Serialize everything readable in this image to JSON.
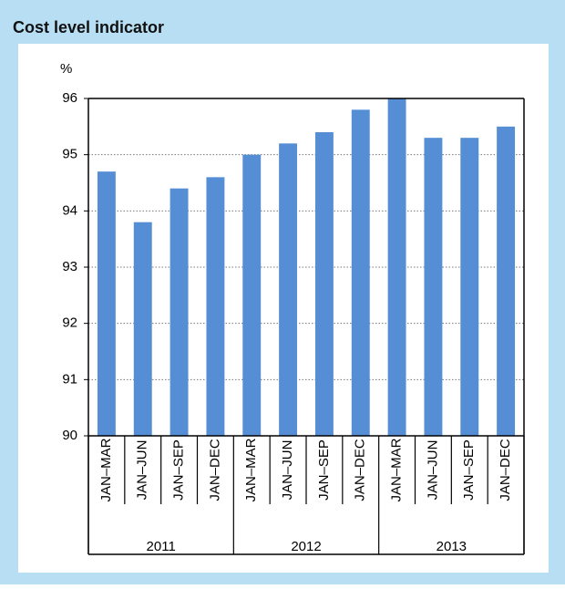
{
  "chart_data": {
    "type": "bar",
    "title": "Cost level indicator",
    "y_label": "%",
    "categories": [
      "JAN–MAR",
      "JAN–JUN",
      "JAN–SEP",
      "JAN–DEC",
      "JAN–MAR",
      "JAN–JUN",
      "JAN–SEP",
      "JAN–DEC",
      "JAN–MAR",
      "JAN–JUN",
      "JAN–SEP",
      "JAN–DEC"
    ],
    "groups": [
      "2011",
      "2012",
      "2013"
    ],
    "values": [
      94.7,
      93.8,
      94.4,
      94.6,
      95.0,
      95.2,
      95.4,
      95.8,
      96.0,
      95.3,
      95.3,
      95.5
    ],
    "color": "#558ed5",
    "ylim": [
      90,
      96
    ],
    "yticks": [
      90,
      91,
      92,
      93,
      94,
      95,
      96
    ],
    "grid": true
  }
}
